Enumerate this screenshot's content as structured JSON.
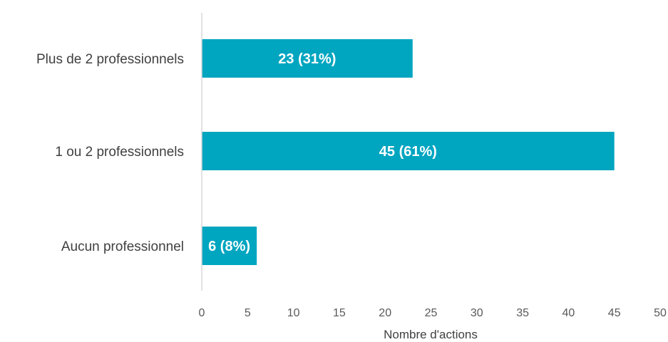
{
  "chart_data": {
    "type": "bar",
    "orientation": "horizontal",
    "categories": [
      "Plus de 2 professionnels",
      "1 ou 2 professionnels",
      "Aucun professionnel"
    ],
    "values": [
      23,
      45,
      6
    ],
    "data_labels": [
      "23 (31%)",
      "45 (61%)",
      "6 (8%)"
    ],
    "xlabel": "Nombre d'actions",
    "xlim": [
      0,
      50
    ],
    "xticks": [
      "0",
      "5",
      "10",
      "15",
      "20",
      "25",
      "30",
      "35",
      "40",
      "45",
      "50"
    ],
    "grid": false,
    "legend": "none",
    "colors": {
      "bar": "#00A5C0",
      "axis": "#D9D9D9"
    }
  }
}
